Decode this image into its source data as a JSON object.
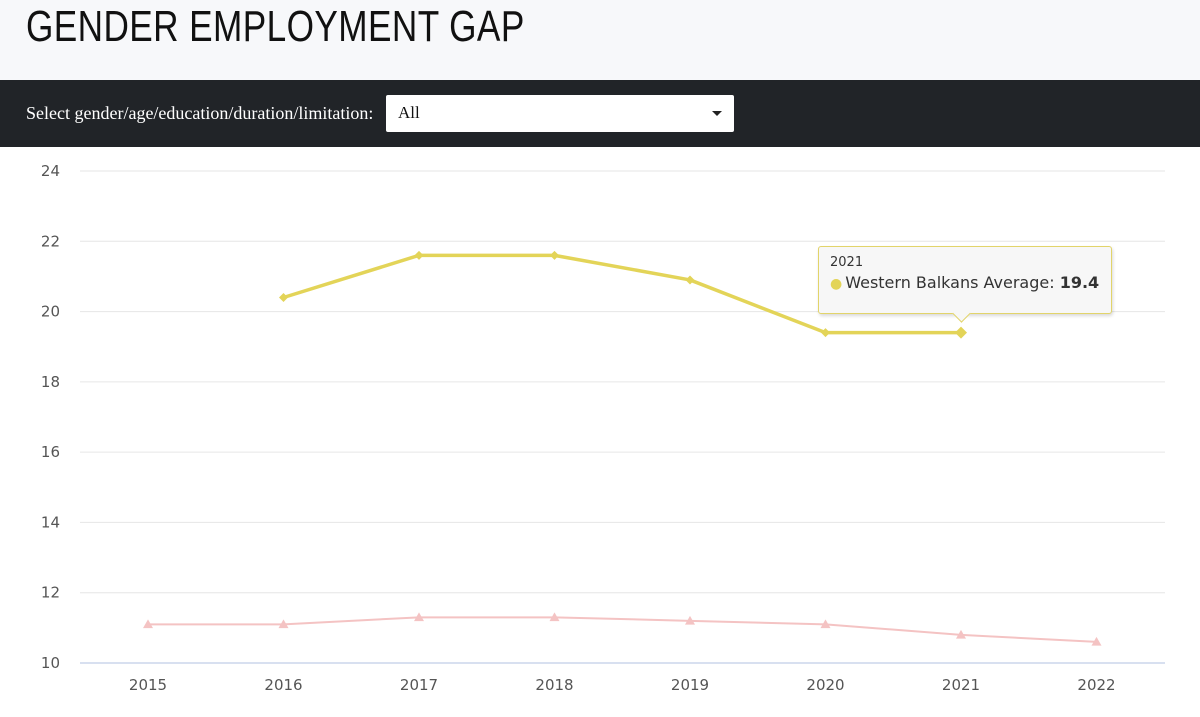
{
  "header": {
    "title": "GENDER EMPLOYMENT GAP"
  },
  "filter": {
    "label": "Select gender/age/education/duration/limitation:",
    "selected": "All"
  },
  "tooltip": {
    "year": "2021",
    "series": "Western Balkans Average",
    "value": "19.4",
    "series_color": "#e3d458"
  },
  "chart_data": {
    "type": "line",
    "title": "",
    "xlabel": "",
    "ylabel": "",
    "x": [
      "2015",
      "2016",
      "2017",
      "2018",
      "2019",
      "2020",
      "2021",
      "2022"
    ],
    "ylim": [
      10,
      24
    ],
    "yticks": [
      10,
      12,
      14,
      16,
      18,
      20,
      22,
      24
    ],
    "grid": true,
    "legend": "none",
    "series": [
      {
        "name": "Western Balkans Average",
        "color": "#e3d458",
        "marker": "diamond",
        "values": [
          null,
          20.4,
          21.6,
          21.6,
          20.9,
          19.4,
          19.4,
          null
        ]
      },
      {
        "color": "#f4c3c3",
        "marker": "triangle",
        "values": [
          11.1,
          11.1,
          11.3,
          11.3,
          11.2,
          11.1,
          10.8,
          10.6
        ]
      }
    ]
  }
}
